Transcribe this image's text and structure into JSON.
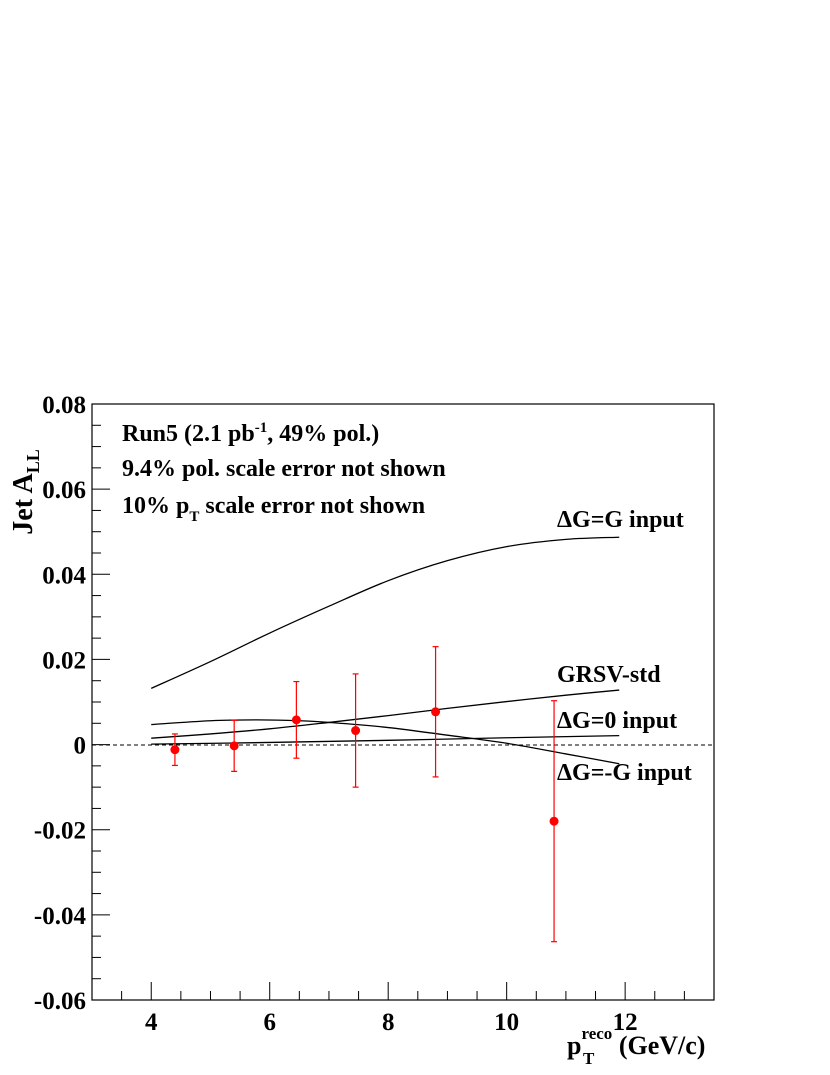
{
  "chart_data": {
    "type": "scatter",
    "xlabel": {
      "main": "p",
      "sub": "T",
      "sup": "reco",
      "rest": " (GeV/c)"
    },
    "ylabel": {
      "main": "Jet A",
      "sub": "LL"
    },
    "xlim": [
      3,
      13.5
    ],
    "ylim": [
      -0.06,
      0.08
    ],
    "x_ticks": [
      "4",
      "6",
      "8",
      "10",
      "12"
    ],
    "y_ticks": [
      "-0.06",
      "-0.04",
      "-0.02",
      "0",
      "0.02",
      "0.04",
      "0.06",
      "0.08"
    ],
    "zero_line": true,
    "annotations": {
      "line1": {
        "a": "Run5 (2.1 pb",
        "sup": "-1",
        "b": ", 49% pol.)"
      },
      "line2": "9.4% pol. scale error not shown",
      "line3": {
        "a": "10% p",
        "sub": "T",
        "b": " scale error not shown"
      }
    },
    "data_points": {
      "color": "#ff0000",
      "points": [
        {
          "x": 4.4,
          "y": -0.0012,
          "err": 0.0037
        },
        {
          "x": 5.4,
          "y": -0.0003,
          "err": 0.006
        },
        {
          "x": 6.45,
          "y": 0.0058,
          "err": 0.009
        },
        {
          "x": 7.45,
          "y": 0.0033,
          "err": 0.0133
        },
        {
          "x": 8.8,
          "y": 0.0077,
          "err": 0.0153
        },
        {
          "x": 10.8,
          "y": -0.018,
          "err": 0.0283
        }
      ]
    },
    "curves": [
      {
        "name": "ΔG=G input",
        "color": "#000000",
        "x": [
          4,
          5,
          6,
          7,
          8,
          9,
          10,
          11,
          11.9
        ],
        "y": [
          0.0132,
          0.0195,
          0.0262,
          0.0325,
          0.0385,
          0.0432,
          0.0465,
          0.0482,
          0.0487
        ]
      },
      {
        "name": "GRSV-std",
        "color": "#000000",
        "x": [
          4,
          5,
          6,
          7,
          8,
          9,
          10,
          11,
          11.9
        ],
        "y": [
          0.0015,
          0.0025,
          0.0037,
          0.0052,
          0.0068,
          0.0085,
          0.0101,
          0.0116,
          0.0128
        ]
      },
      {
        "name": "ΔG=0 input",
        "color": "#000000",
        "x": [
          4,
          6,
          8,
          10,
          11.9
        ],
        "y": [
          0.0001,
          0.0005,
          0.001,
          0.0016,
          0.0021
        ]
      },
      {
        "name": "ΔG=-G input",
        "color": "#000000",
        "x": [
          4,
          5,
          5.8,
          6.5,
          7,
          8,
          9,
          10,
          11,
          11.9
        ],
        "y": [
          0.0047,
          0.0056,
          0.0058,
          0.0056,
          0.0052,
          0.004,
          0.0022,
          0.0003,
          -0.0022,
          -0.0045
        ]
      }
    ]
  }
}
